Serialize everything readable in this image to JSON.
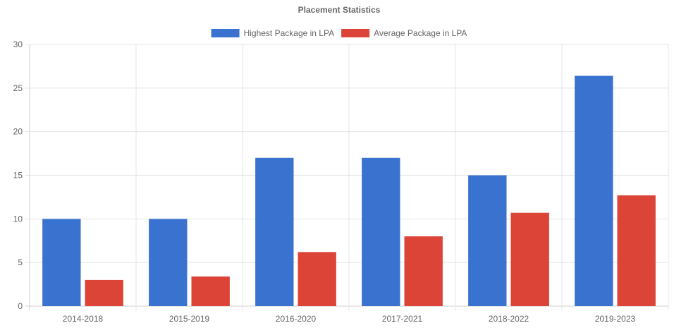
{
  "chart_data": {
    "type": "bar",
    "title": "Placement Statistics",
    "categories": [
      "2014-2018",
      "2015-2019",
      "2016-2020",
      "2017-2021",
      "2018-2022",
      "2019-2023"
    ],
    "series": [
      {
        "name": "Highest Package in LPA",
        "color": "#3a72d0",
        "values": [
          10,
          10,
          17,
          17,
          15,
          26.4
        ]
      },
      {
        "name": "Average Package in LPA",
        "color": "#dc4437",
        "values": [
          3,
          3.4,
          6.2,
          8,
          10.7,
          12.7
        ]
      }
    ],
    "xlabel": "",
    "ylabel": "",
    "ylim": [
      0,
      30
    ],
    "yticks": [
      0,
      5,
      10,
      15,
      20,
      25,
      30
    ],
    "grid": true,
    "legend_position": "top"
  }
}
